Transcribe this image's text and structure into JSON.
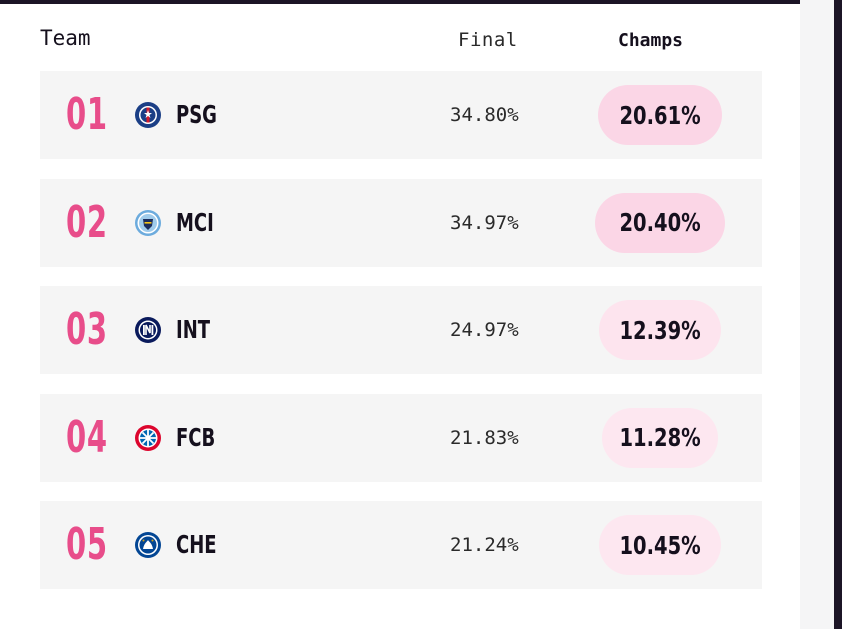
{
  "header": {
    "team": "Team",
    "final": "Final",
    "champs": "Champs"
  },
  "rows": [
    {
      "rank": "01",
      "team": "PSG",
      "crest": "psg-crest-icon",
      "final": "34.80%",
      "champs": "20.61%",
      "pill_color": "#fbd6e6"
    },
    {
      "rank": "02",
      "team": "MCI",
      "crest": "man-city-crest-icon",
      "final": "34.97%",
      "champs": "20.40%",
      "pill_color": "#fbd6e6"
    },
    {
      "rank": "03",
      "team": "INT",
      "crest": "inter-crest-icon",
      "final": "24.97%",
      "champs": "12.39%",
      "pill_color": "#fde4ee"
    },
    {
      "rank": "04",
      "team": "FCB",
      "crest": "bayern-crest-icon",
      "final": "21.83%",
      "champs": "11.28%",
      "pill_color": "#fde7f0"
    },
    {
      "rank": "05",
      "team": "CHE",
      "crest": "chelsea-crest-icon",
      "final": "21.24%",
      "champs": "10.45%",
      "pill_color": "#fde7f0"
    }
  ],
  "colors": {
    "rank": "#e84d8a",
    "row_bg": "#f5f5f5",
    "text": "#15101d"
  }
}
